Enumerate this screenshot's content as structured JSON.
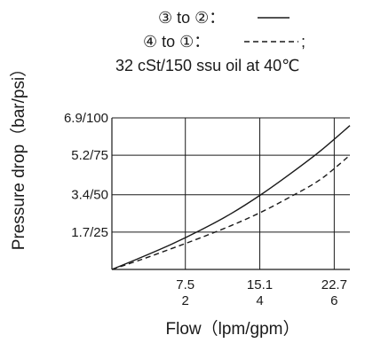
{
  "chart_data": {
    "type": "line",
    "legend": {
      "line1_text": "③ to ②：",
      "line2_text": "④ to ①：",
      "line2_suffix": ";",
      "line3_text": "32 cSt/150 ssu oil at 40℃",
      "placement": "top-center"
    },
    "xlabel": "Flow（lpm/gpm）",
    "ylabel": "Pressure drop（bar/psi）",
    "xlim": [
      0,
      24.3
    ],
    "ylim": [
      0,
      6.9
    ],
    "x_ticks": [
      {
        "value": 7.5,
        "label_top": "7.5",
        "label_bottom": "2"
      },
      {
        "value": 15.1,
        "label_top": "15.1",
        "label_bottom": "4"
      },
      {
        "value": 22.7,
        "label_top": "22.7",
        "label_bottom": "6"
      }
    ],
    "y_ticks": [
      {
        "value": 1.7,
        "label": "1.7/25"
      },
      {
        "value": 3.4,
        "label": "3.4/50"
      },
      {
        "value": 5.2,
        "label": "5.2/75"
      },
      {
        "value": 6.9,
        "label": "6.9/100"
      }
    ],
    "grid": true,
    "series": [
      {
        "style": "solid",
        "color": "#1a1a1a",
        "x": [
          0,
          3.0,
          6.1,
          9.1,
          12.2,
          15.2,
          18.2,
          21.3,
          24.3
        ],
        "y": [
          0,
          0.55,
          1.15,
          1.8,
          2.55,
          3.4,
          4.35,
          5.4,
          6.55
        ]
      },
      {
        "style": "dashed",
        "color": "#1a1a1a",
        "x": [
          0,
          3.0,
          6.1,
          9.1,
          12.2,
          15.2,
          18.2,
          21.3,
          24.3
        ],
        "y": [
          0,
          0.45,
          0.95,
          1.45,
          2.0,
          2.6,
          3.3,
          4.1,
          5.2
        ]
      }
    ]
  }
}
